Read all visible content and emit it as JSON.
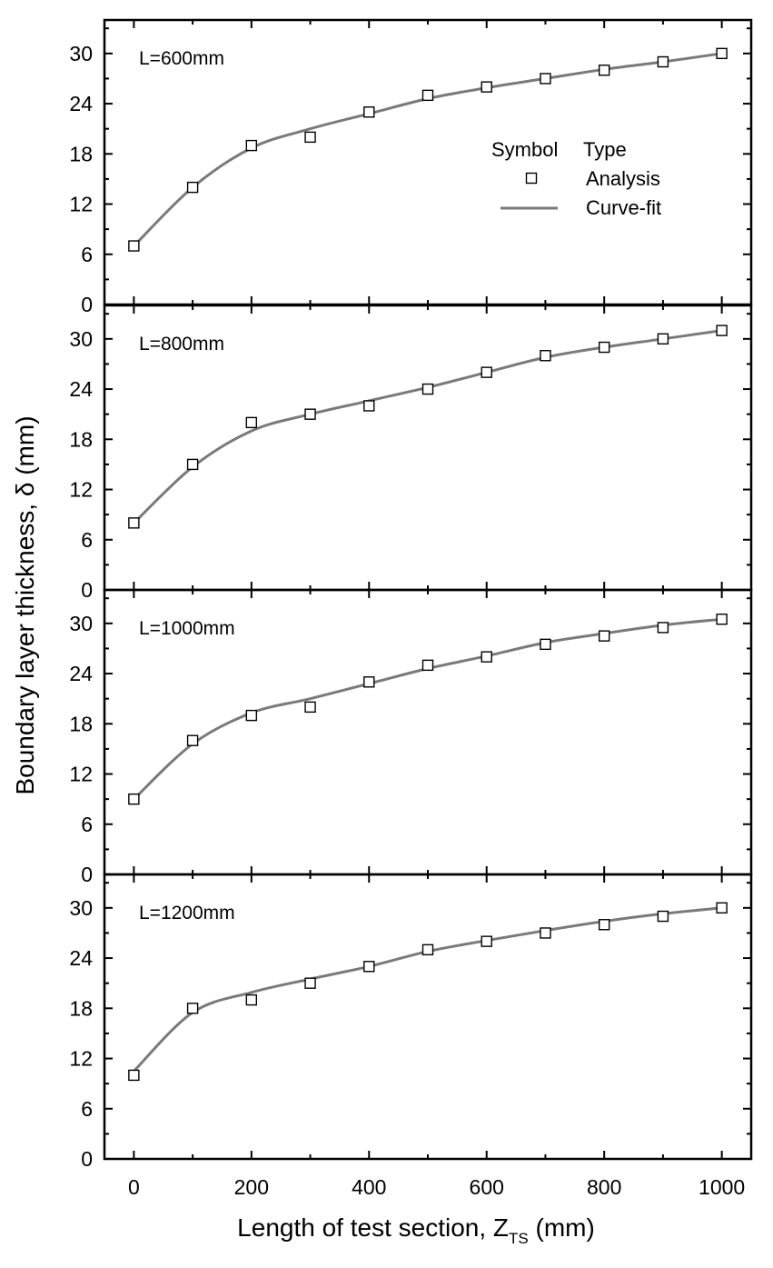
{
  "chart_data": {
    "type": "scatter",
    "ylabel_prefix": "Boundary layer thickness, ",
    "ylabel_symbol": "δ",
    "ylabel_suffix": " (mm)",
    "xlabel_prefix": "Length of test section, Z",
    "xlabel_subscript": "TS",
    "xlabel_suffix": " (mm)",
    "xlim": [
      -50,
      1050
    ],
    "ylim": [
      0,
      34
    ],
    "xticks": [
      0,
      200,
      400,
      600,
      800,
      1000
    ],
    "yticks": [
      0,
      6,
      12,
      18,
      24,
      30
    ],
    "legend": {
      "header_symbol": "Symbol",
      "header_type": "Type",
      "entries": [
        {
          "symbol": "square",
          "label": "Analysis"
        },
        {
          "symbol": "line",
          "label": "Curve-fit"
        }
      ]
    },
    "panels": [
      {
        "label": "L=600mm",
        "x": [
          0,
          100,
          200,
          300,
          400,
          500,
          600,
          700,
          800,
          900,
          1000
        ],
        "analysis": [
          7,
          14,
          19,
          20,
          23,
          25,
          26,
          27,
          28,
          29,
          30
        ],
        "curve_fit": [
          7,
          14,
          18.7,
          21,
          22.8,
          24.6,
          25.9,
          27,
          28.1,
          29,
          30
        ]
      },
      {
        "label": "L=800mm",
        "x": [
          0,
          100,
          200,
          300,
          400,
          500,
          600,
          700,
          800,
          900,
          1000
        ],
        "analysis": [
          8,
          15,
          20,
          21,
          22,
          24,
          26,
          28,
          29,
          30,
          31
        ],
        "curve_fit": [
          8,
          14.7,
          19,
          21,
          22.6,
          24.2,
          26,
          27.8,
          29,
          30,
          31
        ]
      },
      {
        "label": "L=1000mm",
        "x": [
          0,
          100,
          200,
          300,
          400,
          500,
          600,
          700,
          800,
          900,
          1000
        ],
        "analysis": [
          9,
          16,
          19,
          20,
          23,
          25,
          26,
          27.5,
          28.5,
          29.5,
          30.5
        ],
        "curve_fit": [
          9,
          15.6,
          19.3,
          21,
          22.8,
          24.6,
          26.1,
          27.7,
          28.8,
          29.8,
          30.5
        ]
      },
      {
        "label": "L=1200mm",
        "x": [
          0,
          100,
          200,
          300,
          400,
          500,
          600,
          700,
          800,
          900,
          1000
        ],
        "analysis": [
          10,
          18,
          19,
          21,
          23,
          25,
          26,
          27,
          28,
          29,
          30
        ],
        "curve_fit": [
          10.5,
          17.5,
          19.9,
          21.5,
          23,
          24.8,
          26.1,
          27.3,
          28.4,
          29.3,
          30
        ]
      }
    ]
  }
}
